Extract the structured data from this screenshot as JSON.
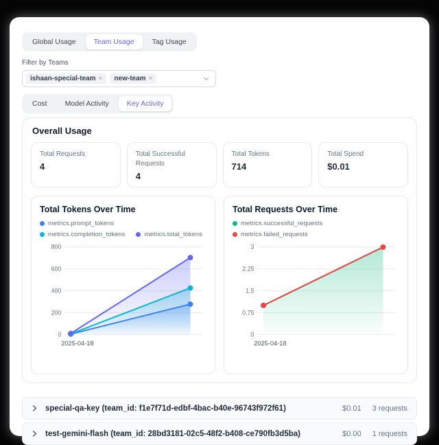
{
  "tabs_primary": {
    "items": [
      {
        "label": "Global Usage",
        "active": false
      },
      {
        "label": "Team Usage",
        "active": true
      },
      {
        "label": "Tag Usage",
        "active": false
      }
    ]
  },
  "filter": {
    "label": "Filter by Teams",
    "teams": [
      {
        "name": "ishaan-special-team"
      },
      {
        "name": "new-team"
      }
    ]
  },
  "tabs_secondary": {
    "items": [
      {
        "label": "Cost",
        "active": false
      },
      {
        "label": "Model Activity",
        "active": false
      },
      {
        "label": "Key Activity",
        "active": true
      }
    ]
  },
  "overall": {
    "title": "Overall Usage",
    "stats": [
      {
        "label": "Total Requests",
        "value": "4"
      },
      {
        "label": "Total Successful Requests",
        "value": "4"
      },
      {
        "label": "Total Tokens",
        "value": "714"
      },
      {
        "label": "Total Spend",
        "value": "$0.01"
      }
    ]
  },
  "icons": {
    "remove": "×",
    "chevron_down": "chevron-down",
    "chevron_right": "chevron-right"
  },
  "colors": {
    "accent_indigo": "#6366f1",
    "prompt_blue": "#3b82f6",
    "completion_cyan": "#06b6d4",
    "total_indigo": "#6366f1",
    "success_green": "#10b981",
    "failed_red": "#ef4444",
    "grid": "#e8eaed",
    "axis_text": "#6b7280"
  },
  "chart_data": [
    {
      "type": "area",
      "title": "Total Tokens Over Time",
      "x_axis_labels": [
        "2025-04-18"
      ],
      "x_points": 2,
      "ylim": [
        0,
        800
      ],
      "yticks": [
        0,
        200,
        400,
        600,
        800
      ],
      "ytick_labels": [
        "0",
        "200",
        "400",
        "600",
        "800"
      ],
      "grid": true,
      "legend_position": "top",
      "series": [
        {
          "name": "metrics.prompt_tokens",
          "color": "#3b82f6",
          "values": [
            4,
            278
          ],
          "fill": true
        },
        {
          "name": "metrics.completion_tokens",
          "color": "#06b6d4",
          "values": [
            6,
            426
          ],
          "fill": true
        },
        {
          "name": "metrics.total_tokens",
          "color": "#6366f1",
          "values": [
            10,
            704
          ],
          "fill": true
        }
      ]
    },
    {
      "type": "area",
      "title": "Total Requests Over Time",
      "x_axis_labels": [
        "2025-04-18"
      ],
      "x_points": 2,
      "ylim": [
        0,
        3
      ],
      "yticks": [
        0,
        0.75,
        1.5,
        2.25,
        3
      ],
      "ytick_labels": [
        "0",
        "0.75",
        "1.5",
        "2.25",
        "3"
      ],
      "grid": true,
      "legend_position": "top",
      "series": [
        {
          "name": "metrics.successful_requests",
          "color": "#10b981",
          "values": [
            1,
            3
          ],
          "fill": true
        },
        {
          "name": "metrics.failed_requests",
          "color": "#ef4444",
          "values": [
            1,
            3
          ],
          "fill": false
        }
      ]
    }
  ],
  "keys": {
    "rows": [
      {
        "label": "special-qa-key (team_id: f1e7f71d-edbf-4bac-b40e-96743f972f61)",
        "spend": "$0.01",
        "requests": "3 requests"
      },
      {
        "label": "test-gemini-flash (team_id: 28bd3181-02c5-48f2-b408-ce790fb3d5ba)",
        "spend": "$0.00",
        "requests": "1 requests"
      }
    ]
  }
}
